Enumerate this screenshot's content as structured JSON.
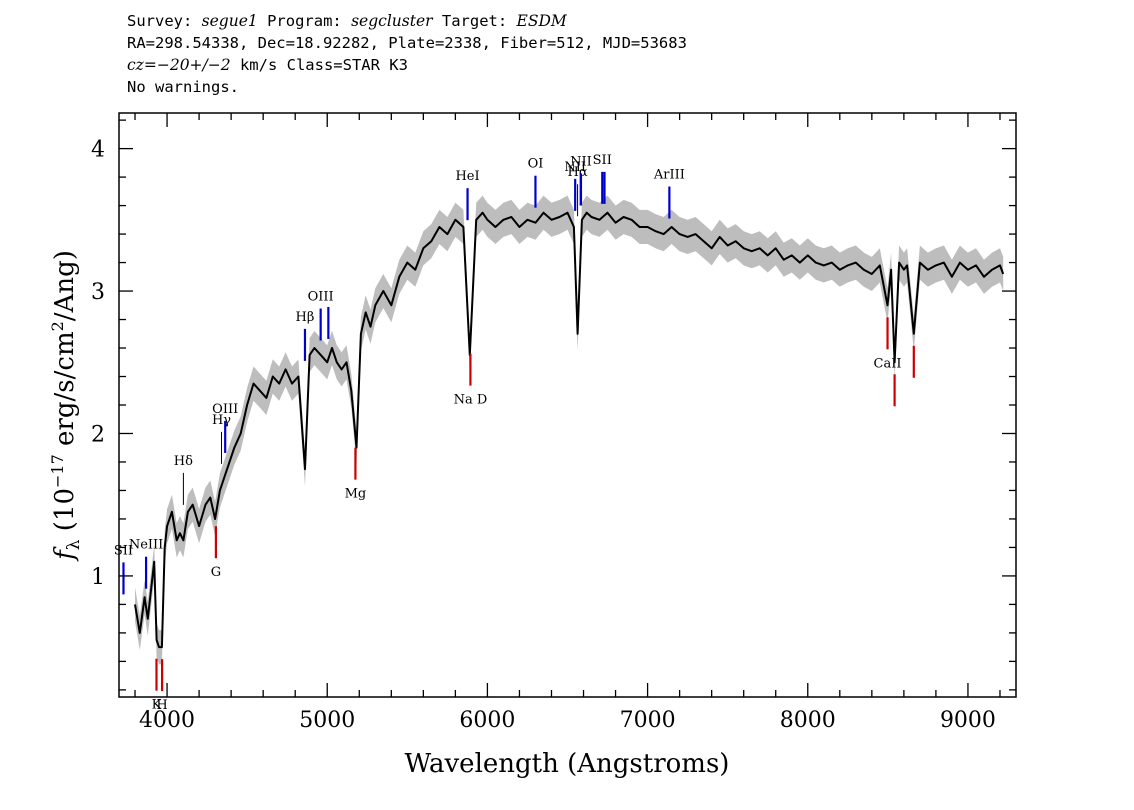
{
  "header": {
    "survey_label": "Survey:",
    "survey": "segue1",
    "program_label": "Program:",
    "program": "segcluster",
    "target_label": "Target:",
    "target": "ESDM",
    "line2": "RA=298.54338, Dec=18.92282, Plate=2338, Fiber=512, MJD=53683",
    "cz_symbol": "cz",
    "cz_value": "=−20+/−2",
    "cz_rest": " km/s Class=STAR K3",
    "line4": "No warnings."
  },
  "colors": {
    "flux": "#000000",
    "error_band": "#bdbdbd",
    "emission": "#0000cc",
    "absorption": "#cc0000",
    "neutral": "#000000"
  },
  "chart_data": {
    "type": "line",
    "title": "",
    "xlabel": "Wavelength (Angstroms)",
    "ylabel": "f_λ (10^-17 erg/s/cm^2/Ang)",
    "xlim": [
      3700,
      9300
    ],
    "ylim": [
      0.15,
      4.25
    ],
    "xticks": [
      4000,
      5000,
      6000,
      7000,
      8000,
      9000
    ],
    "yticks": [
      1,
      2,
      3,
      4
    ],
    "grid": false,
    "legend": "none",
    "series": [
      {
        "values_x": [
          3800,
          3830,
          3860,
          3880,
          3900,
          3920,
          3935,
          3950,
          3968,
          3985,
          4000,
          4030,
          4060,
          4080,
          4102,
          4130,
          4160,
          4200,
          4240,
          4270,
          4300,
          4330,
          4360,
          4390,
          4420,
          4460,
          4500,
          4540,
          4580,
          4620,
          4660,
          4700,
          4740,
          4780,
          4820,
          4861,
          4890,
          4920,
          4960,
          5000,
          5030,
          5060,
          5090,
          5120,
          5150,
          5183,
          5210,
          5240,
          5270,
          5300,
          5350,
          5400,
          5450,
          5500,
          5550,
          5600,
          5650,
          5700,
          5750,
          5800,
          5850,
          5890,
          5930,
          5970,
          6000,
          6050,
          6100,
          6150,
          6200,
          6250,
          6300,
          6350,
          6400,
          6450,
          6500,
          6540,
          6563,
          6590,
          6620,
          6650,
          6700,
          6750,
          6800,
          6850,
          6900,
          6950,
          7000,
          7050,
          7100,
          7150,
          7200,
          7250,
          7300,
          7350,
          7400,
          7450,
          7500,
          7550,
          7600,
          7650,
          7700,
          7750,
          7800,
          7850,
          7900,
          7950,
          8000,
          8050,
          8100,
          8150,
          8200,
          8250,
          8300,
          8350,
          8400,
          8450,
          8498,
          8520,
          8542,
          8570,
          8600,
          8620,
          8662,
          8700,
          8750,
          8800,
          8850,
          8900,
          8950,
          9000,
          9050,
          9100,
          9150,
          9200,
          9220
        ],
        "values_y": [
          0.8,
          0.6,
          0.85,
          0.7,
          0.9,
          1.1,
          0.55,
          0.5,
          0.5,
          1.2,
          1.35,
          1.45,
          1.25,
          1.3,
          1.25,
          1.45,
          1.5,
          1.35,
          1.5,
          1.55,
          1.4,
          1.6,
          1.7,
          1.8,
          1.9,
          2.0,
          2.2,
          2.35,
          2.3,
          2.25,
          2.4,
          2.35,
          2.45,
          2.35,
          2.4,
          1.75,
          2.55,
          2.6,
          2.55,
          2.5,
          2.6,
          2.5,
          2.45,
          2.5,
          2.3,
          1.9,
          2.7,
          2.85,
          2.75,
          2.9,
          3.0,
          2.9,
          3.1,
          3.2,
          3.15,
          3.3,
          3.35,
          3.45,
          3.4,
          3.5,
          3.45,
          2.55,
          3.5,
          3.55,
          3.5,
          3.45,
          3.5,
          3.52,
          3.45,
          3.5,
          3.48,
          3.55,
          3.5,
          3.52,
          3.55,
          3.45,
          2.7,
          3.5,
          3.55,
          3.52,
          3.5,
          3.55,
          3.48,
          3.52,
          3.5,
          3.45,
          3.45,
          3.42,
          3.4,
          3.45,
          3.4,
          3.38,
          3.4,
          3.35,
          3.3,
          3.38,
          3.32,
          3.35,
          3.3,
          3.28,
          3.3,
          3.25,
          3.3,
          3.22,
          3.25,
          3.2,
          3.25,
          3.2,
          3.18,
          3.2,
          3.15,
          3.18,
          3.2,
          3.15,
          3.12,
          3.18,
          2.9,
          3.15,
          2.5,
          3.2,
          3.15,
          3.18,
          2.7,
          3.2,
          3.15,
          3.18,
          3.2,
          3.1,
          3.2,
          3.15,
          3.18,
          3.1,
          3.15,
          3.18,
          3.12
        ],
        "error": 0.12
      }
    ],
    "lines": [
      {
        "label": "SII",
        "wave": 3728,
        "kind": "emission"
      },
      {
        "label": "NeIII",
        "wave": 3869,
        "kind": "emission"
      },
      {
        "label": "Hδ",
        "wave": 4102,
        "kind": "neutral"
      },
      {
        "label": "Hγ",
        "wave": 4340,
        "kind": "neutral"
      },
      {
        "label": "OIII",
        "wave": 4363,
        "kind": "emission"
      },
      {
        "label": "Hβ",
        "wave": 4861,
        "kind": "emission"
      },
      {
        "label": "OIII",
        "wave": 4959,
        "kind": "emission"
      },
      {
        "label": "",
        "wave": 5007,
        "kind": "emission"
      },
      {
        "label": "HeI",
        "wave": 5876,
        "kind": "emission"
      },
      {
        "label": "OI",
        "wave": 6300,
        "kind": "emission"
      },
      {
        "label": "NII",
        "wave": 6548,
        "kind": "emission"
      },
      {
        "label": "Hα",
        "wave": 6563,
        "kind": "neutral"
      },
      {
        "label": "",
        "wave": 6583,
        "kind": "emission"
      },
      {
        "label": "NII",
        "wave": 6584,
        "kind": "emission"
      },
      {
        "label": "SII",
        "wave": 6717,
        "kind": "emission"
      },
      {
        "label": "",
        "wave": 6731,
        "kind": "emission"
      },
      {
        "label": "ArIII",
        "wave": 7136,
        "kind": "emission"
      },
      {
        "label": "K",
        "wave": 3934,
        "kind": "absorption"
      },
      {
        "label": "H",
        "wave": 3969,
        "kind": "absorption"
      },
      {
        "label": "G",
        "wave": 4305,
        "kind": "absorption"
      },
      {
        "label": "Mg",
        "wave": 5176,
        "kind": "absorption"
      },
      {
        "label": "Na D",
        "wave": 5894,
        "kind": "absorption"
      },
      {
        "label": "CaII",
        "wave": 8498,
        "kind": "absorption"
      },
      {
        "label": "",
        "wave": 8542,
        "kind": "absorption"
      },
      {
        "label": "",
        "wave": 8662,
        "kind": "absorption"
      }
    ]
  }
}
